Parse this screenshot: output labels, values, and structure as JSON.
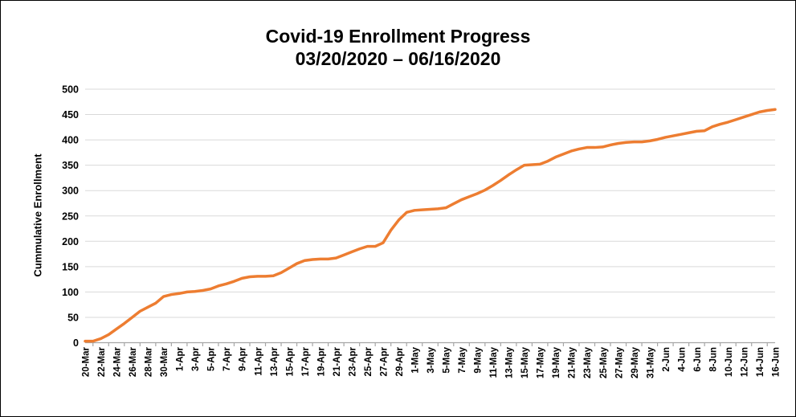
{
  "chart_data": {
    "type": "line",
    "title": "Covid-19 Enrollment Progress",
    "subtitle": "03/20/2020 – 06/16/2020",
    "xlabel": "",
    "ylabel": "Cummulative Enrollment",
    "ylim": [
      0,
      500
    ],
    "ytick_interval": 50,
    "yticks": [
      0,
      50,
      100,
      150,
      200,
      250,
      300,
      350,
      400,
      450,
      500
    ],
    "grid": "horizontal",
    "legend": "none",
    "line_color": "#ED7D31",
    "gridline_color": "#D9D9D9",
    "axis_line_color": "#A6A6A6",
    "x_tick_labels": [
      "20-Mar",
      "22-Mar",
      "24-Mar",
      "26-Mar",
      "28-Mar",
      "30-Mar",
      "1-Apr",
      "3-Apr",
      "5-Apr",
      "7-Apr",
      "9-Apr",
      "11-Apr",
      "13-Apr",
      "15-Apr",
      "17-Apr",
      "19-Apr",
      "21-Apr",
      "23-Apr",
      "25-Apr",
      "27-Apr",
      "29-Apr",
      "1-May",
      "3-May",
      "5-May",
      "7-May",
      "9-May",
      "11-May",
      "13-May",
      "15-May",
      "17-May",
      "19-May",
      "21-May",
      "23-May",
      "25-May",
      "27-May",
      "29-May",
      "31-May",
      "2-Jun",
      "4-Jun",
      "6-Jun",
      "8-Jun",
      "10-Jun",
      "12-Jun",
      "14-Jun",
      "16-Jun"
    ],
    "x": [
      "20-Mar",
      "21-Mar",
      "22-Mar",
      "23-Mar",
      "24-Mar",
      "25-Mar",
      "26-Mar",
      "27-Mar",
      "28-Mar",
      "29-Mar",
      "30-Mar",
      "31-Mar",
      "1-Apr",
      "2-Apr",
      "3-Apr",
      "4-Apr",
      "5-Apr",
      "6-Apr",
      "7-Apr",
      "8-Apr",
      "9-Apr",
      "10-Apr",
      "11-Apr",
      "12-Apr",
      "13-Apr",
      "14-Apr",
      "15-Apr",
      "16-Apr",
      "17-Apr",
      "18-Apr",
      "19-Apr",
      "20-Apr",
      "21-Apr",
      "22-Apr",
      "23-Apr",
      "24-Apr",
      "25-Apr",
      "26-Apr",
      "27-Apr",
      "28-Apr",
      "29-Apr",
      "30-Apr",
      "1-May",
      "2-May",
      "3-May",
      "4-May",
      "5-May",
      "6-May",
      "7-May",
      "8-May",
      "9-May",
      "10-May",
      "11-May",
      "12-May",
      "13-May",
      "14-May",
      "15-May",
      "16-May",
      "17-May",
      "18-May",
      "19-May",
      "20-May",
      "21-May",
      "22-May",
      "23-May",
      "24-May",
      "25-May",
      "26-May",
      "27-May",
      "28-May",
      "29-May",
      "30-May",
      "31-May",
      "1-Jun",
      "2-Jun",
      "3-Jun",
      "4-Jun",
      "5-Jun",
      "6-Jun",
      "7-Jun",
      "8-Jun",
      "9-Jun",
      "10-Jun",
      "11-Jun",
      "12-Jun",
      "13-Jun",
      "14-Jun",
      "15-Jun",
      "16-Jun"
    ],
    "series": [
      {
        "name": "Cummulative Enrollment",
        "color": "#ED7D31",
        "values": [
          3,
          3,
          8,
          16,
          27,
          38,
          50,
          62,
          70,
          78,
          91,
          95,
          97,
          100,
          101,
          103,
          106,
          112,
          116,
          121,
          127,
          130,
          131,
          131,
          132,
          138,
          147,
          156,
          162,
          164,
          165,
          165,
          167,
          173,
          179,
          185,
          190,
          190,
          197,
          222,
          242,
          257,
          261,
          262,
          263,
          264,
          266,
          274,
          282,
          288,
          294,
          301,
          310,
          320,
          331,
          341,
          350,
          351,
          352,
          358,
          366,
          372,
          378,
          382,
          385,
          385,
          386,
          390,
          393,
          395,
          396,
          396,
          398,
          401,
          405,
          408,
          411,
          414,
          417,
          418,
          426,
          431,
          435,
          440,
          445,
          450,
          455,
          458,
          460
        ]
      }
    ]
  }
}
